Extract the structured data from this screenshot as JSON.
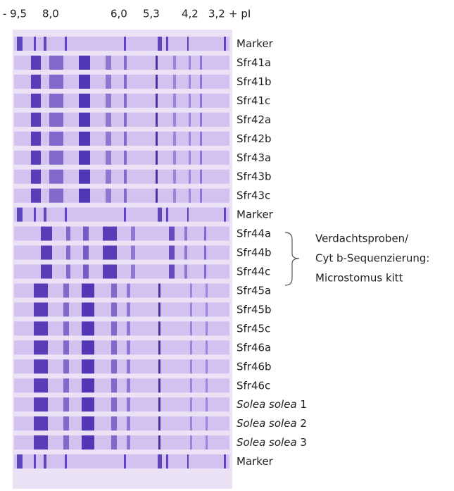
{
  "scale": [
    "- 9,5",
    "8,0",
    "6,0",
    "5,3",
    "4,2",
    "3,2",
    "+ pI"
  ],
  "lanes": [
    {
      "name": "Marker"
    },
    {
      "name": "Sfr41a"
    },
    {
      "name": "Sfr41b"
    },
    {
      "name": "Sfr41c"
    },
    {
      "name": "Sfr42a"
    },
    {
      "name": "Sfr42b"
    },
    {
      "name": "Sfr43a"
    },
    {
      "name": "Sfr43b"
    },
    {
      "name": "Sfr43c"
    },
    {
      "name": "Marker"
    },
    {
      "name": "Sfr44a"
    },
    {
      "name": "Sfr44b"
    },
    {
      "name": "Sfr44c"
    },
    {
      "name": "Sfr45a"
    },
    {
      "name": "Sfr45b"
    },
    {
      "name": "Sfr45c"
    },
    {
      "name": "Sfr46a"
    },
    {
      "name": "Sfr46b"
    },
    {
      "name": "Sfr46c"
    },
    {
      "name": "Solea solea",
      "suffix": "1"
    },
    {
      "name": "Solea solea",
      "suffix": "2"
    },
    {
      "name": "Solea solea",
      "suffix": "3"
    },
    {
      "name": "Marker"
    }
  ],
  "annotation": [
    "Verdachtsproben/",
    "Cyt b-Sequenzierung:",
    "Microstomus kitt"
  ]
}
